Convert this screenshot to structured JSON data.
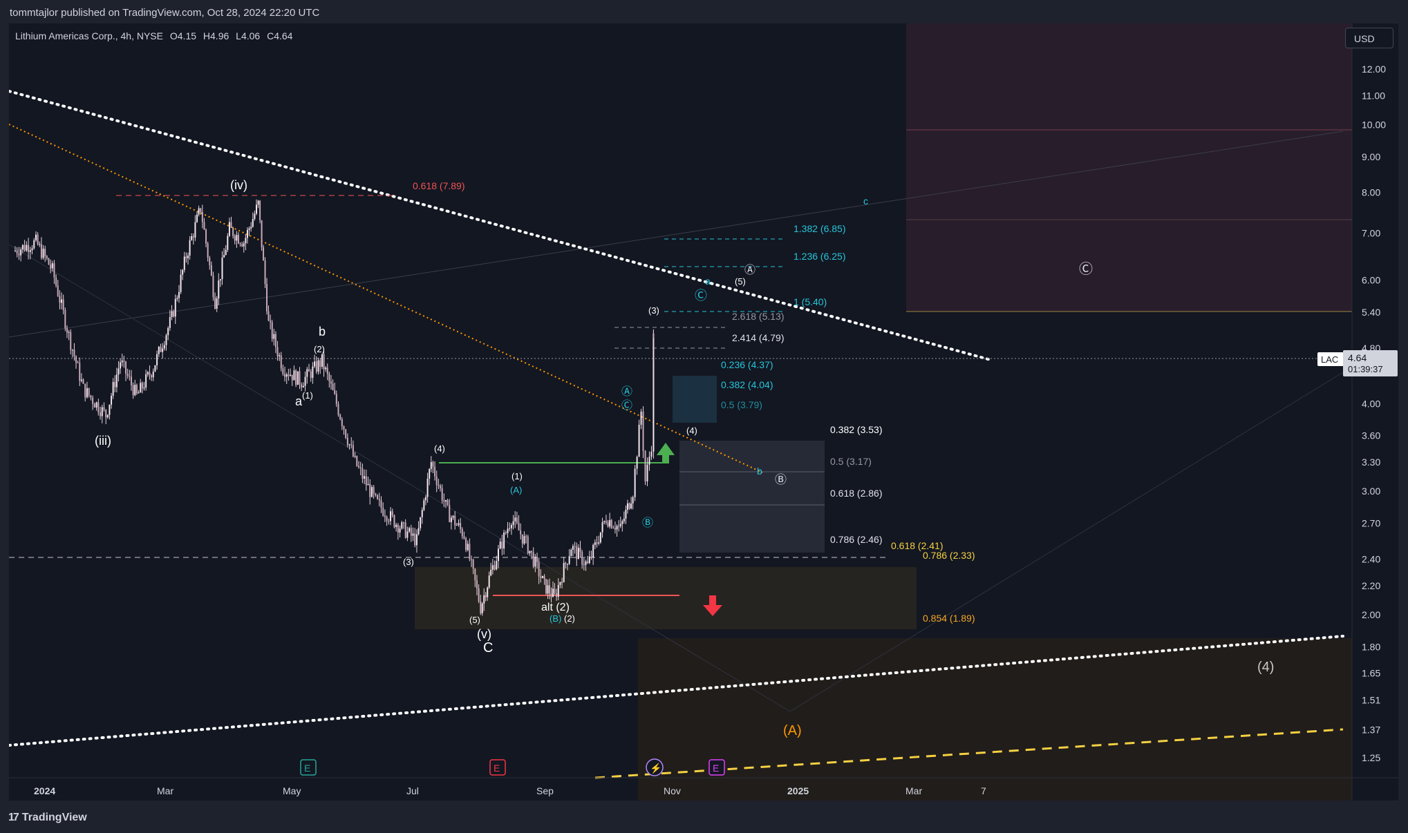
{
  "header": {
    "published": "tommtajlor published on TradingView.com, Oct 28, 2024 22:20 UTC"
  },
  "symbol": {
    "name": "Lithium Americas Corp., 4h, NYSE",
    "open": "O4.15",
    "high": "H4.96",
    "low": "L4.06",
    "close": "C4.64"
  },
  "price_axis": {
    "currency": "USD",
    "ticks": [
      "12.00",
      "11.00",
      "10.00",
      "9.00",
      "8.00",
      "7.00",
      "6.00",
      "5.40",
      "4.80",
      "4.00",
      "3.60",
      "3.30",
      "3.00",
      "2.70",
      "2.40",
      "2.20",
      "2.00",
      "1.80",
      "1.65",
      "1.51",
      "1.37",
      "1.25"
    ],
    "last_ticker": "LAC",
    "last_price": "4.64",
    "countdown": "01:39:37"
  },
  "time_axis": {
    "ticks": [
      "2024",
      "Mar",
      "May",
      "Jul",
      "Sep",
      "Nov",
      "2025",
      "Mar",
      "7"
    ]
  },
  "fib_labels": {
    "f1": "0.618 (7.89)",
    "f2": "1.382 (6.85)",
    "f3": "1.236 (6.25)",
    "f4": "1 (5.40)",
    "f5": "2.618 (5.13)",
    "f6": "2.414 (4.79)",
    "f7": "0.236 (4.37)",
    "f8": "0.382 (4.04)",
    "f9": "0.5 (3.79)",
    "f10": "0.382 (3.53)",
    "f11": "0.5 (3.17)",
    "f12": "0.618 (2.86)",
    "f13": "0.786 (2.46)",
    "f14": "0.618 (2.41)",
    "f15": "0.786 (2.33)",
    "f16": "0.854 (1.89)"
  },
  "wave_labels": {
    "iv": "(iv)",
    "iii": "(iii)",
    "b": "b",
    "b2": "(2)",
    "a": "a",
    "a1": "(1)",
    "w4": "(4)",
    "w3": "(3)",
    "w5": "(5)",
    "v": "(v)",
    "C": "C",
    "w1": "(1)",
    "A": "(A)",
    "alt2": "alt (2)",
    "B": "(B)",
    "w2": "(2)",
    "circA1": "Ⓐ",
    "circC1": "Ⓒ",
    "circB1": "Ⓑ",
    "top3": "(3)",
    "w4b": "(4)",
    "circB2": "Ⓑ",
    "b_small": "b",
    "a_small": "a",
    "w5b": "(5)",
    "circA2": "Ⓐ",
    "circC2": "Ⓒ",
    "c_small": "c",
    "bigC": "Ⓒ",
    "bigA": "(A)",
    "big4": "(4)"
  },
  "events": {
    "e1": "E",
    "e2": "E",
    "e3": "E",
    "lightning": "⚡"
  },
  "brand": {
    "logo": "TradingView"
  },
  "colors": {
    "bg": "#131722",
    "candle": "#e8d5df",
    "fib_cyan": "#26c6da",
    "fib_red": "#f05454",
    "orange": "#ff9800",
    "green": "#4caf50",
    "yellow": "#f5d142"
  },
  "chart_data": {
    "type": "candlestick",
    "title": "Lithium Americas Corp., 4h, NYSE",
    "log_scale": true,
    "ylim": [
      1.2,
      13.0
    ],
    "x_range": [
      "2023-12-20",
      "2025-04-20"
    ],
    "price_path": [
      [
        "2023-12-22",
        6.6
      ],
      [
        "2024-01-02",
        6.8
      ],
      [
        "2024-01-10",
        6.2
      ],
      [
        "2024-01-18",
        5.0
      ],
      [
        "2024-01-25",
        4.2
      ],
      [
        "2024-02-05",
        3.85
      ],
      [
        "2024-02-12",
        4.6
      ],
      [
        "2024-02-20",
        4.1
      ],
      [
        "2024-02-28",
        4.5
      ],
      [
        "2024-03-08",
        5.3
      ],
      [
        "2024-03-15",
        6.5
      ],
      [
        "2024-03-22",
        7.6
      ],
      [
        "2024-03-29",
        5.6
      ],
      [
        "2024-04-05",
        7.1
      ],
      [
        "2024-04-12",
        6.8
      ],
      [
        "2024-04-19",
        7.7
      ],
      [
        "2024-04-24",
        5.2
      ],
      [
        "2024-05-01",
        4.5
      ],
      [
        "2024-05-10",
        4.3
      ],
      [
        "2024-05-20",
        4.6
      ],
      [
        "2024-05-27",
        4.0
      ],
      [
        "2024-06-05",
        3.3
      ],
      [
        "2024-06-15",
        2.9
      ],
      [
        "2024-06-25",
        2.7
      ],
      [
        "2024-07-05",
        2.55
      ],
      [
        "2024-07-12",
        3.3
      ],
      [
        "2024-07-20",
        2.8
      ],
      [
        "2024-07-28",
        2.6
      ],
      [
        "2024-08-05",
        2.05
      ],
      [
        "2024-08-10",
        2.3
      ],
      [
        "2024-08-20",
        2.75
      ],
      [
        "2024-08-28",
        2.5
      ],
      [
        "2024-09-05",
        2.2
      ],
      [
        "2024-09-10",
        2.12
      ],
      [
        "2024-09-18",
        2.5
      ],
      [
        "2024-09-26",
        2.35
      ],
      [
        "2024-10-05",
        2.75
      ],
      [
        "2024-10-12",
        2.65
      ],
      [
        "2024-10-18",
        3.0
      ],
      [
        "2024-10-22",
        3.9
      ],
      [
        "2024-10-24",
        3.1
      ],
      [
        "2024-10-27",
        3.5
      ],
      [
        "2024-10-28",
        4.96
      ],
      [
        "2024-10-28",
        4.64
      ]
    ],
    "last_price": 4.64,
    "horizontal_levels": [
      7.89,
      4.64,
      2.41,
      3.3,
      2.12
    ]
  }
}
